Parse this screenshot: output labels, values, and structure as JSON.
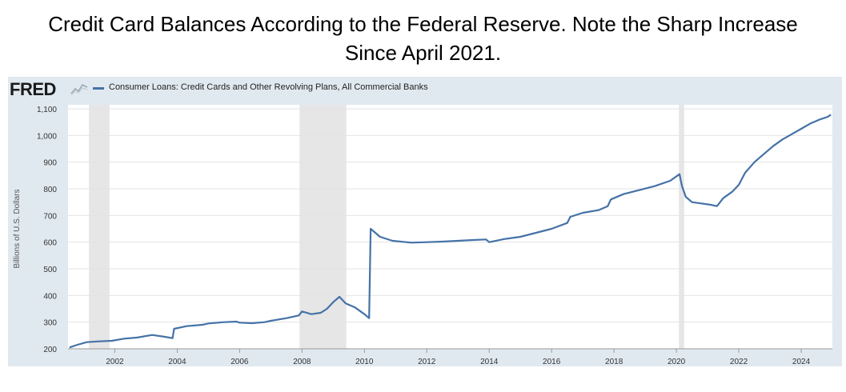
{
  "slide": {
    "title_line1": "Credit Card Balances According to the Federal Reserve. Note the Sharp Increase",
    "title_line2": "Since April 2021."
  },
  "fred": {
    "logo": "FRED",
    "logo_icon": "fred-line-chart-icon",
    "legend_label": "Consumer Loans: Credit Cards and Other Revolving Plans, All Commercial Banks",
    "series_color": "#4572a7",
    "recession_color": "#e6e6e6",
    "background": "#e1e9f0"
  },
  "chart_data": {
    "type": "line",
    "title": "",
    "xlabel": "",
    "ylabel": "Billions of U.S. Dollars",
    "xlim": [
      2000.5,
      2025.0
    ],
    "ylim": [
      200,
      1100
    ],
    "y_ticks": [
      200,
      300,
      400,
      500,
      600,
      700,
      800,
      900,
      1000,
      1100
    ],
    "y_tick_labels": [
      "200",
      "300",
      "400",
      "500",
      "600",
      "700",
      "800",
      "900",
      "1,000",
      "1,100"
    ],
    "x_ticks": [
      2002,
      2004,
      2006,
      2008,
      2010,
      2012,
      2014,
      2016,
      2018,
      2020,
      2022,
      2024
    ],
    "x_tick_labels": [
      "2002",
      "2004",
      "2006",
      "2008",
      "2010",
      "2012",
      "2014",
      "2016",
      "2018",
      "2020",
      "2022",
      "2024"
    ],
    "grid": true,
    "legend": "top-left",
    "recessions": [
      [
        2001.17,
        2001.83
      ],
      [
        2007.92,
        2009.42
      ],
      [
        2020.08,
        2020.25
      ]
    ],
    "series": [
      {
        "name": "Consumer Loans: Credit Cards and Other Revolving Plans, All Commercial Banks",
        "x": [
          2000.55,
          2000.8,
          2001.1,
          2001.5,
          2001.9,
          2002.3,
          2002.7,
          2003.2,
          2003.6,
          2003.85,
          2003.9,
          2004.3,
          2004.8,
          2005.0,
          2005.5,
          2005.9,
          2006.0,
          2006.4,
          2006.8,
          2007.0,
          2007.5,
          2007.9,
          2008.0,
          2008.3,
          2008.6,
          2008.8,
          2009.0,
          2009.2,
          2009.4,
          2009.7,
          2010.0,
          2010.15,
          2010.2,
          2010.5,
          2010.9,
          2011.5,
          2012.0,
          2012.5,
          2013.0,
          2013.5,
          2013.9,
          2014.0,
          2014.5,
          2015.0,
          2015.5,
          2016.0,
          2016.5,
          2016.6,
          2017.0,
          2017.5,
          2017.8,
          2017.9,
          2018.3,
          2018.8,
          2019.3,
          2019.8,
          2020.1,
          2020.18,
          2020.3,
          2020.5,
          2020.8,
          2021.1,
          2021.3,
          2021.5,
          2021.8,
          2022.0,
          2022.2,
          2022.5,
          2022.8,
          2023.1,
          2023.4,
          2023.7,
          2024.0,
          2024.3,
          2024.6,
          2024.85,
          2024.95
        ],
        "values": [
          205,
          215,
          225,
          228,
          230,
          238,
          242,
          252,
          245,
          240,
          275,
          285,
          290,
          295,
          300,
          302,
          298,
          296,
          300,
          305,
          315,
          325,
          340,
          330,
          335,
          350,
          375,
          395,
          370,
          355,
          330,
          315,
          650,
          620,
          605,
          598,
          600,
          602,
          605,
          608,
          610,
          600,
          612,
          620,
          635,
          650,
          672,
          695,
          710,
          720,
          735,
          760,
          780,
          795,
          810,
          830,
          855,
          810,
          770,
          750,
          745,
          740,
          735,
          765,
          790,
          815,
          860,
          900,
          930,
          960,
          985,
          1005,
          1025,
          1045,
          1060,
          1070,
          1078
        ]
      }
    ]
  }
}
